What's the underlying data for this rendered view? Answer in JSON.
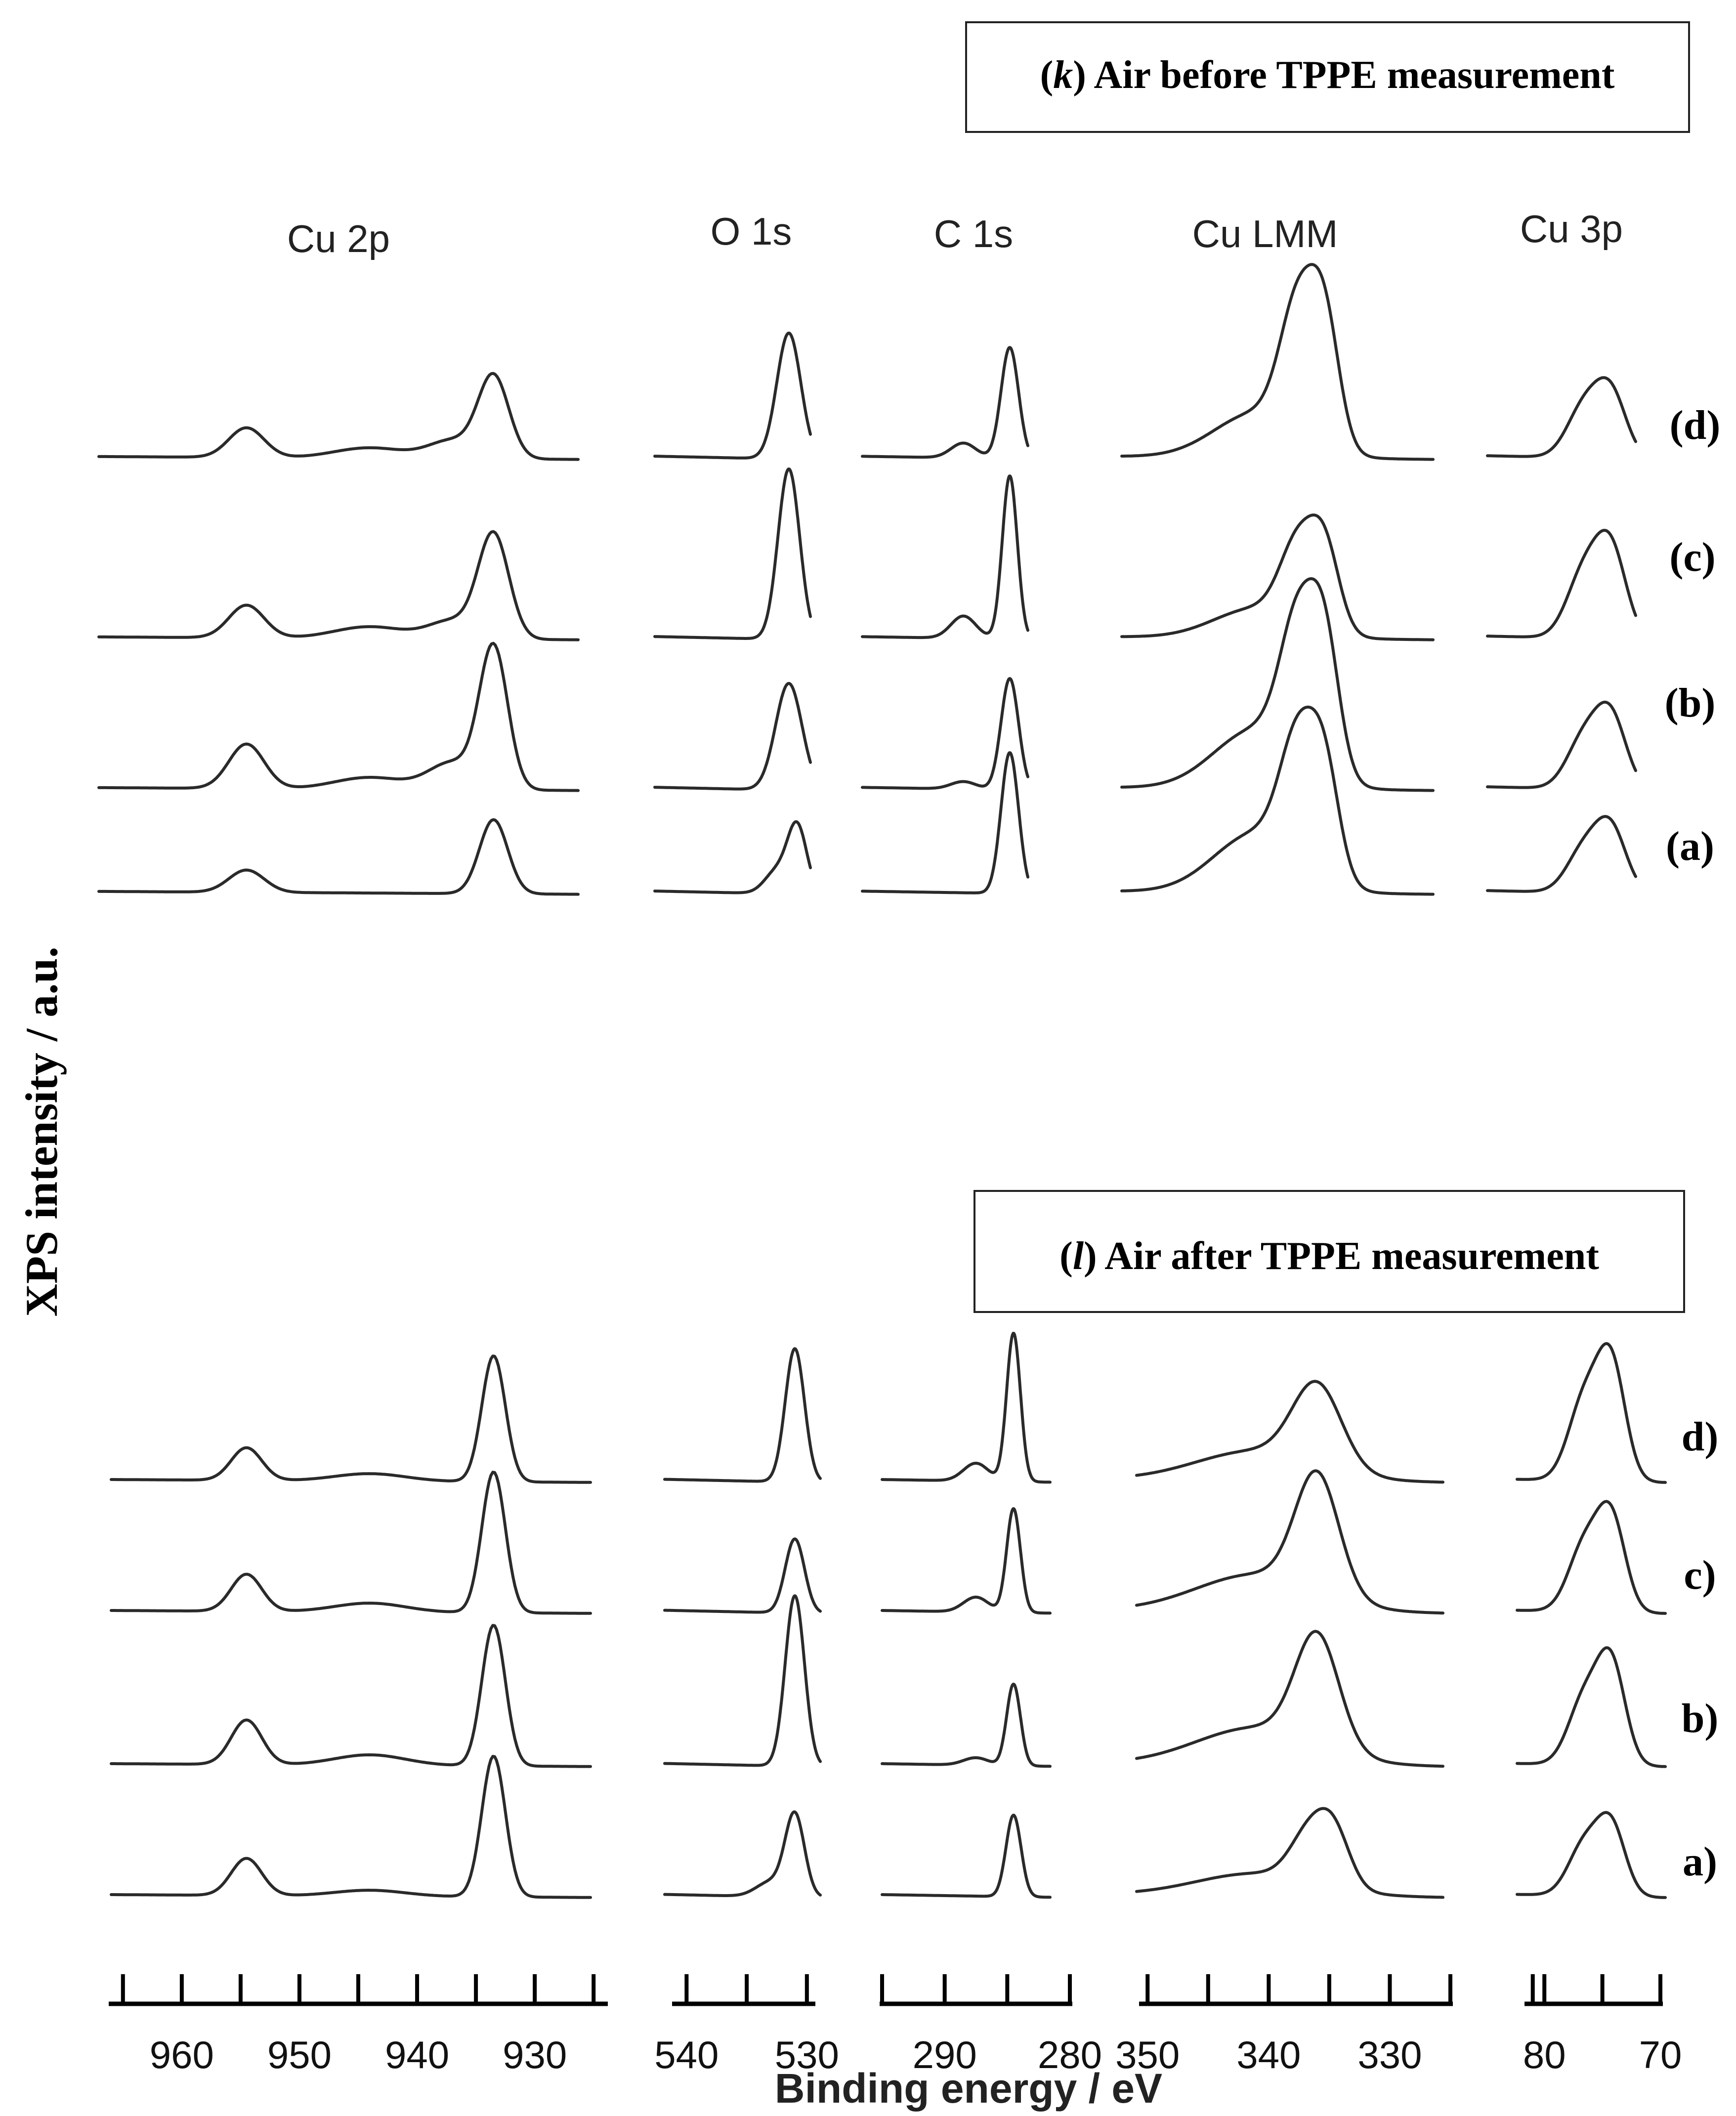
{
  "chart_data": {
    "type": "line",
    "ylabel": "XPS intensity / a.u.",
    "xlabel": "Binding energy / eV",
    "grid": false,
    "regions": [
      {
        "name": "Cu 2p",
        "xlim": [
          966,
          924
        ],
        "ticks": [
          965,
          960,
          955,
          950,
          945,
          940,
          935,
          930,
          925
        ],
        "tick_labels": [
          {
            "v": 960,
            "t": "960"
          },
          {
            "v": 950,
            "t": "950"
          },
          {
            "v": 940,
            "t": "940"
          },
          {
            "v": 930,
            "t": "930"
          }
        ]
      },
      {
        "name": "O 1s",
        "xlim": [
          541,
          529.5
        ],
        "ticks": [
          540,
          535,
          530
        ],
        "tick_labels": [
          {
            "v": 540,
            "t": "540"
          },
          {
            "v": 530,
            "t": "530"
          }
        ]
      },
      {
        "name": "C 1s",
        "xlim": [
          295,
          280
        ],
        "ticks": [
          295,
          290,
          285,
          280
        ],
        "tick_labels": [
          {
            "v": 290,
            "t": "290"
          },
          {
            "v": 280,
            "t": "280"
          }
        ]
      },
      {
        "name": "Cu LMM",
        "xlim": [
          350.5,
          325
        ],
        "ticks": [
          350,
          345,
          340,
          335,
          330,
          325
        ],
        "tick_labels": [
          {
            "v": 350,
            "t": "350"
          },
          {
            "v": 340,
            "t": "340"
          },
          {
            "v": 330,
            "t": "330"
          }
        ]
      },
      {
        "name": "Cu 3p",
        "xlim": [
          81.5,
          70
        ],
        "ticks": [
          81,
          80,
          75,
          70
        ],
        "tick_labels": [
          {
            "v": 80,
            "t": "80"
          },
          {
            "v": 70,
            "t": "70"
          }
        ]
      }
    ],
    "panels": [
      {
        "title_letter": "k",
        "title_rest": "Air before TPPE measurement",
        "sample_labels": [
          "(d)",
          "(c)",
          "(b)",
          "(a)"
        ],
        "traces": [
          {
            "sample": "(d)",
            "peaks": [
              {
                "region": 0,
                "pos": 933.5,
                "h": 0.55,
                "w": 1.3
              },
              {
                "region": 0,
                "pos": 937,
                "h": 0.12,
                "w": 2.0
              },
              {
                "region": 0,
                "pos": 954.5,
                "h": 0.2,
                "w": 1.5
              },
              {
                "region": 0,
                "pos": 944,
                "h": 0.07,
                "w": 3.0
              },
              {
                "region": 1,
                "pos": 531.5,
                "h": 0.85,
                "w": 1.0
              },
              {
                "region": 2,
                "pos": 284.8,
                "h": 0.75,
                "w": 0.7
              },
              {
                "region": 2,
                "pos": 288.5,
                "h": 0.1,
                "w": 1.0
              },
              {
                "region": 3,
                "pos": 337.5,
                "h": 0.9,
                "w": 1.5
              },
              {
                "region": 3,
                "pos": 335.3,
                "h": 0.75,
                "w": 1.2
              },
              {
                "region": 3,
                "pos": 341,
                "h": 0.3,
                "w": 3.5
              },
              {
                "region": 4,
                "pos": 76.5,
                "h": 0.35,
                "w": 1.5
              },
              {
                "region": 4,
                "pos": 74.2,
                "h": 0.4,
                "w": 1.3
              }
            ]
          },
          {
            "sample": "(c)",
            "peaks": [
              {
                "region": 0,
                "pos": 933.5,
                "h": 0.7,
                "w": 1.3
              },
              {
                "region": 0,
                "pos": 937,
                "h": 0.12,
                "w": 2.0
              },
              {
                "region": 0,
                "pos": 954.5,
                "h": 0.22,
                "w": 1.5
              },
              {
                "region": 0,
                "pos": 944,
                "h": 0.08,
                "w": 3.0
              },
              {
                "region": 1,
                "pos": 531.5,
                "h": 1.15,
                "w": 0.9
              },
              {
                "region": 2,
                "pos": 284.8,
                "h": 1.1,
                "w": 0.6
              },
              {
                "region": 2,
                "pos": 288.5,
                "h": 0.15,
                "w": 1.0
              },
              {
                "region": 3,
                "pos": 337.5,
                "h": 0.55,
                "w": 1.5
              },
              {
                "region": 3,
                "pos": 335.3,
                "h": 0.5,
                "w": 1.2
              },
              {
                "region": 3,
                "pos": 341,
                "h": 0.2,
                "w": 3.5
              },
              {
                "region": 4,
                "pos": 76.5,
                "h": 0.45,
                "w": 1.5
              },
              {
                "region": 4,
                "pos": 74.2,
                "h": 0.55,
                "w": 1.3
              }
            ]
          },
          {
            "sample": "(b)",
            "peaks": [
              {
                "region": 0,
                "pos": 933.5,
                "h": 0.95,
                "w": 1.2
              },
              {
                "region": 0,
                "pos": 937,
                "h": 0.18,
                "w": 2.0
              },
              {
                "region": 0,
                "pos": 954.5,
                "h": 0.3,
                "w": 1.5
              },
              {
                "region": 0,
                "pos": 944,
                "h": 0.08,
                "w": 3.0
              },
              {
                "region": 1,
                "pos": 531.5,
                "h": 0.72,
                "w": 1.1
              },
              {
                "region": 2,
                "pos": 284.8,
                "h": 0.75,
                "w": 0.7
              },
              {
                "region": 2,
                "pos": 288.5,
                "h": 0.05,
                "w": 1.0
              },
              {
                "region": 3,
                "pos": 337.5,
                "h": 0.95,
                "w": 1.5
              },
              {
                "region": 3,
                "pos": 335.3,
                "h": 0.8,
                "w": 1.2
              },
              {
                "region": 3,
                "pos": 341,
                "h": 0.4,
                "w": 3.5
              },
              {
                "region": 4,
                "pos": 76.5,
                "h": 0.35,
                "w": 1.5
              },
              {
                "region": 4,
                "pos": 74.2,
                "h": 0.45,
                "w": 1.3
              }
            ]
          },
          {
            "sample": "(a)",
            "peaks": [
              {
                "region": 0,
                "pos": 933.5,
                "h": 0.5,
                "w": 1.2
              },
              {
                "region": 0,
                "pos": 954.5,
                "h": 0.15,
                "w": 1.5
              },
              {
                "region": 1,
                "pos": 530.8,
                "h": 0.45,
                "w": 0.8
              },
              {
                "region": 1,
                "pos": 532.5,
                "h": 0.15,
                "w": 1.0
              },
              {
                "region": 2,
                "pos": 284.8,
                "h": 0.95,
                "w": 0.7
              },
              {
                "region": 3,
                "pos": 337.5,
                "h": 0.85,
                "w": 1.5
              },
              {
                "region": 3,
                "pos": 335.3,
                "h": 0.65,
                "w": 1.2
              },
              {
                "region": 3,
                "pos": 341,
                "h": 0.4,
                "w": 3.5
              },
              {
                "region": 4,
                "pos": 76.5,
                "h": 0.3,
                "w": 1.5
              },
              {
                "region": 4,
                "pos": 74.2,
                "h": 0.4,
                "w": 1.3
              }
            ]
          }
        ]
      },
      {
        "title_letter": "l",
        "title_rest": "Air after TPPE measurement",
        "sample_labels": [
          "d)",
          "c)",
          "b)",
          "a)"
        ],
        "traces": [
          {
            "sample": "d)",
            "peaks": [
              {
                "region": 0,
                "pos": 933.5,
                "h": 0.85,
                "w": 1.0
              },
              {
                "region": 0,
                "pos": 954.5,
                "h": 0.22,
                "w": 1.3
              },
              {
                "region": 0,
                "pos": 944,
                "h": 0.05,
                "w": 3.0
              },
              {
                "region": 1,
                "pos": 531,
                "h": 0.9,
                "w": 0.8
              },
              {
                "region": 2,
                "pos": 284.5,
                "h": 1.0,
                "w": 0.55
              },
              {
                "region": 2,
                "pos": 287.5,
                "h": 0.12,
                "w": 1.0
              },
              {
                "region": 3,
                "pos": 336,
                "h": 0.55,
                "w": 2.0
              },
              {
                "region": 3,
                "pos": 341,
                "h": 0.2,
                "w": 5.0
              },
              {
                "region": 4,
                "pos": 76.5,
                "h": 0.55,
                "w": 1.4
              },
              {
                "region": 4,
                "pos": 74.2,
                "h": 0.75,
                "w": 1.2
              }
            ]
          },
          {
            "sample": "c)",
            "peaks": [
              {
                "region": 0,
                "pos": 933.5,
                "h": 0.95,
                "w": 1.0
              },
              {
                "region": 0,
                "pos": 954.5,
                "h": 0.25,
                "w": 1.3
              },
              {
                "region": 0,
                "pos": 944,
                "h": 0.06,
                "w": 3.0
              },
              {
                "region": 1,
                "pos": 531,
                "h": 0.5,
                "w": 0.8
              },
              {
                "region": 2,
                "pos": 284.5,
                "h": 0.7,
                "w": 0.55
              },
              {
                "region": 2,
                "pos": 287.5,
                "h": 0.1,
                "w": 1.0
              },
              {
                "region": 3,
                "pos": 336,
                "h": 0.8,
                "w": 1.8
              },
              {
                "region": 3,
                "pos": 341,
                "h": 0.25,
                "w": 5.0
              },
              {
                "region": 4,
                "pos": 76.5,
                "h": 0.45,
                "w": 1.4
              },
              {
                "region": 4,
                "pos": 74.2,
                "h": 0.6,
                "w": 1.2
              }
            ]
          },
          {
            "sample": "b)",
            "peaks": [
              {
                "region": 0,
                "pos": 933.5,
                "h": 0.95,
                "w": 1.0
              },
              {
                "region": 0,
                "pos": 954.5,
                "h": 0.3,
                "w": 1.3
              },
              {
                "region": 0,
                "pos": 944,
                "h": 0.07,
                "w": 3.0
              },
              {
                "region": 1,
                "pos": 531,
                "h": 1.15,
                "w": 0.8
              },
              {
                "region": 2,
                "pos": 284.5,
                "h": 0.55,
                "w": 0.55
              },
              {
                "region": 2,
                "pos": 287.5,
                "h": 0.05,
                "w": 1.0
              },
              {
                "region": 3,
                "pos": 336,
                "h": 0.75,
                "w": 1.8
              },
              {
                "region": 3,
                "pos": 341,
                "h": 0.25,
                "w": 5.0
              },
              {
                "region": 4,
                "pos": 76.5,
                "h": 0.45,
                "w": 1.4
              },
              {
                "region": 4,
                "pos": 74.2,
                "h": 0.65,
                "w": 1.2
              }
            ]
          },
          {
            "sample": "a)",
            "peaks": [
              {
                "region": 0,
                "pos": 933.5,
                "h": 0.95,
                "w": 1.0
              },
              {
                "region": 0,
                "pos": 954.5,
                "h": 0.25,
                "w": 1.3
              },
              {
                "region": 0,
                "pos": 944,
                "h": 0.04,
                "w": 3.0
              },
              {
                "region": 1,
                "pos": 531,
                "h": 0.55,
                "w": 0.8
              },
              {
                "region": 1,
                "pos": 533,
                "h": 0.1,
                "w": 1.2
              },
              {
                "region": 2,
                "pos": 284.5,
                "h": 0.55,
                "w": 0.6
              },
              {
                "region": 3,
                "pos": 336.5,
                "h": 0.35,
                "w": 1.6
              },
              {
                "region": 3,
                "pos": 334.5,
                "h": 0.3,
                "w": 1.3
              },
              {
                "region": 3,
                "pos": 341,
                "h": 0.15,
                "w": 5.0
              },
              {
                "region": 4,
                "pos": 76.5,
                "h": 0.35,
                "w": 1.4
              },
              {
                "region": 4,
                "pos": 74.2,
                "h": 0.45,
                "w": 1.2
              }
            ]
          }
        ]
      }
    ]
  }
}
